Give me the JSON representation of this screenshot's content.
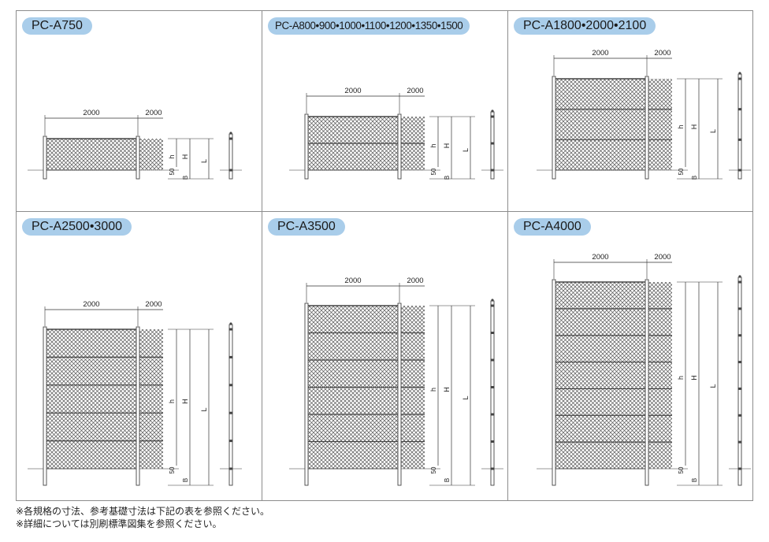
{
  "panels": [
    {
      "label": "PC-A750",
      "size": "small"
    },
    {
      "label": "PC-A800•900•1000•1100•1200•1350•1500",
      "size": "narrow"
    },
    {
      "label": "PC-A1800•2000•2100",
      "size": "normal"
    },
    {
      "label": "PC-A2500•3000",
      "size": "normal"
    },
    {
      "label": "PC-A3500",
      "size": "normal"
    },
    {
      "label": "PC-A4000",
      "size": "normal"
    }
  ],
  "dimensions": {
    "span_width": "2000",
    "span_width_next": "2000",
    "h": "h",
    "H": "H",
    "L": "L",
    "B": "B",
    "foundation": "50"
  },
  "notes": [
    "※各規格の寸法、参考基礎寸法は下記の表を参照ください。",
    "※詳細については別刷標準図集を参照ください。"
  ]
}
